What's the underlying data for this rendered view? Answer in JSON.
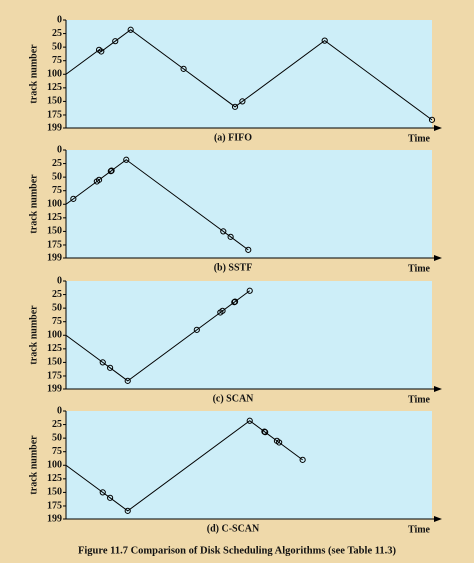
{
  "chart_data": [
    {
      "type": "line",
      "title": "(a) FIFO",
      "y_label": "track number",
      "x_label": "Time",
      "x": [
        0,
        45,
        48,
        67,
        88,
        160,
        230,
        240,
        352,
        498
      ],
      "values": [
        100,
        55,
        58,
        39,
        18,
        90,
        160,
        150,
        38,
        184
      ],
      "xlim": [
        0,
        498
      ],
      "ylim": [
        0,
        199
      ],
      "y_inverted": true,
      "yticks": [
        0,
        25,
        50,
        75,
        100,
        125,
        150,
        175,
        199
      ],
      "color": "#000000",
      "background": "#cdeef8"
    },
    {
      "type": "line",
      "title": "(b) SSTF",
      "y_label": "track number",
      "x_label": "Time",
      "x": [
        0,
        10,
        42,
        45,
        61,
        62,
        82,
        214,
        224,
        248
      ],
      "values": [
        100,
        90,
        58,
        55,
        39,
        38,
        18,
        150,
        160,
        184
      ],
      "xlim": [
        0,
        498
      ],
      "ylim": [
        0,
        199
      ],
      "y_inverted": true,
      "yticks": [
        0,
        25,
        50,
        75,
        100,
        125,
        150,
        175,
        199
      ],
      "color": "#000000",
      "background": "#cdeef8"
    },
    {
      "type": "line",
      "title": "(c) SCAN",
      "y_label": "track number",
      "x_label": "Time",
      "x": [
        0,
        50,
        60,
        84,
        178,
        210,
        213,
        229,
        230,
        250
      ],
      "values": [
        100,
        150,
        160,
        184,
        90,
        58,
        55,
        39,
        38,
        18
      ],
      "xlim": [
        0,
        498
      ],
      "ylim": [
        0,
        199
      ],
      "y_inverted": true,
      "yticks": [
        0,
        25,
        50,
        75,
        100,
        125,
        150,
        175,
        199
      ],
      "color": "#000000",
      "background": "#cdeef8"
    },
    {
      "type": "line",
      "title": "(d) C-SCAN",
      "y_label": "track number",
      "x_label": "Time",
      "x": [
        0,
        50,
        60,
        84,
        250,
        270,
        271,
        287,
        290,
        322
      ],
      "values": [
        100,
        150,
        160,
        184,
        18,
        38,
        39,
        55,
        58,
        90
      ],
      "xlim": [
        0,
        498
      ],
      "ylim": [
        0,
        199
      ],
      "y_inverted": true,
      "yticks": [
        0,
        25,
        50,
        75,
        100,
        125,
        150,
        175,
        199
      ],
      "color": "#000000",
      "background": "#cdeef8"
    }
  ],
  "caption": "Figure 11.7   Comparison of Disk Scheduling Algorithms (see Table 11.3)"
}
